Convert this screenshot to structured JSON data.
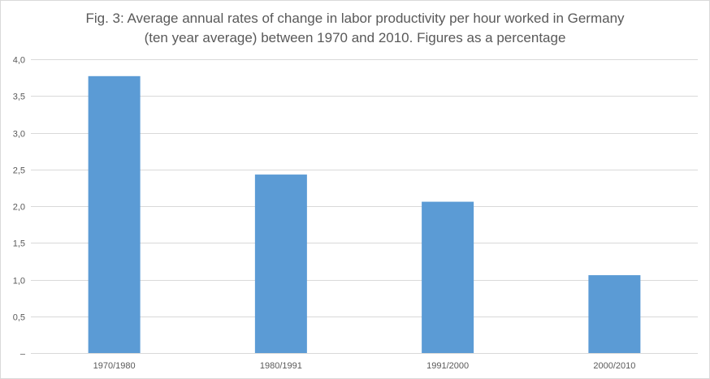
{
  "chart_data": {
    "type": "bar",
    "title_lines": [
      "Fig. 3: Average annual rates of change in labor productivity per hour worked in Germany",
      "(ten year average) between 1970 and 2010. Figures as a percentage"
    ],
    "categories": [
      "1970/1980",
      "1980/1991",
      "1991/2000",
      "2000/2010"
    ],
    "values": [
      3.77,
      2.43,
      2.06,
      1.06
    ],
    "ylim": [
      0,
      4.0
    ],
    "yticks": [
      0,
      0.5,
      1.0,
      1.5,
      2.0,
      2.5,
      3.0,
      3.5,
      4.0
    ],
    "ytick_labels": [
      "–",
      "0,5",
      "1,0",
      "1,5",
      "2,0",
      "2,5",
      "3,0",
      "3,5",
      "4,0"
    ],
    "grid": true,
    "bar_color": "#5b9bd5",
    "grid_color": "#d9d9d9",
    "text_color": "#595959"
  }
}
